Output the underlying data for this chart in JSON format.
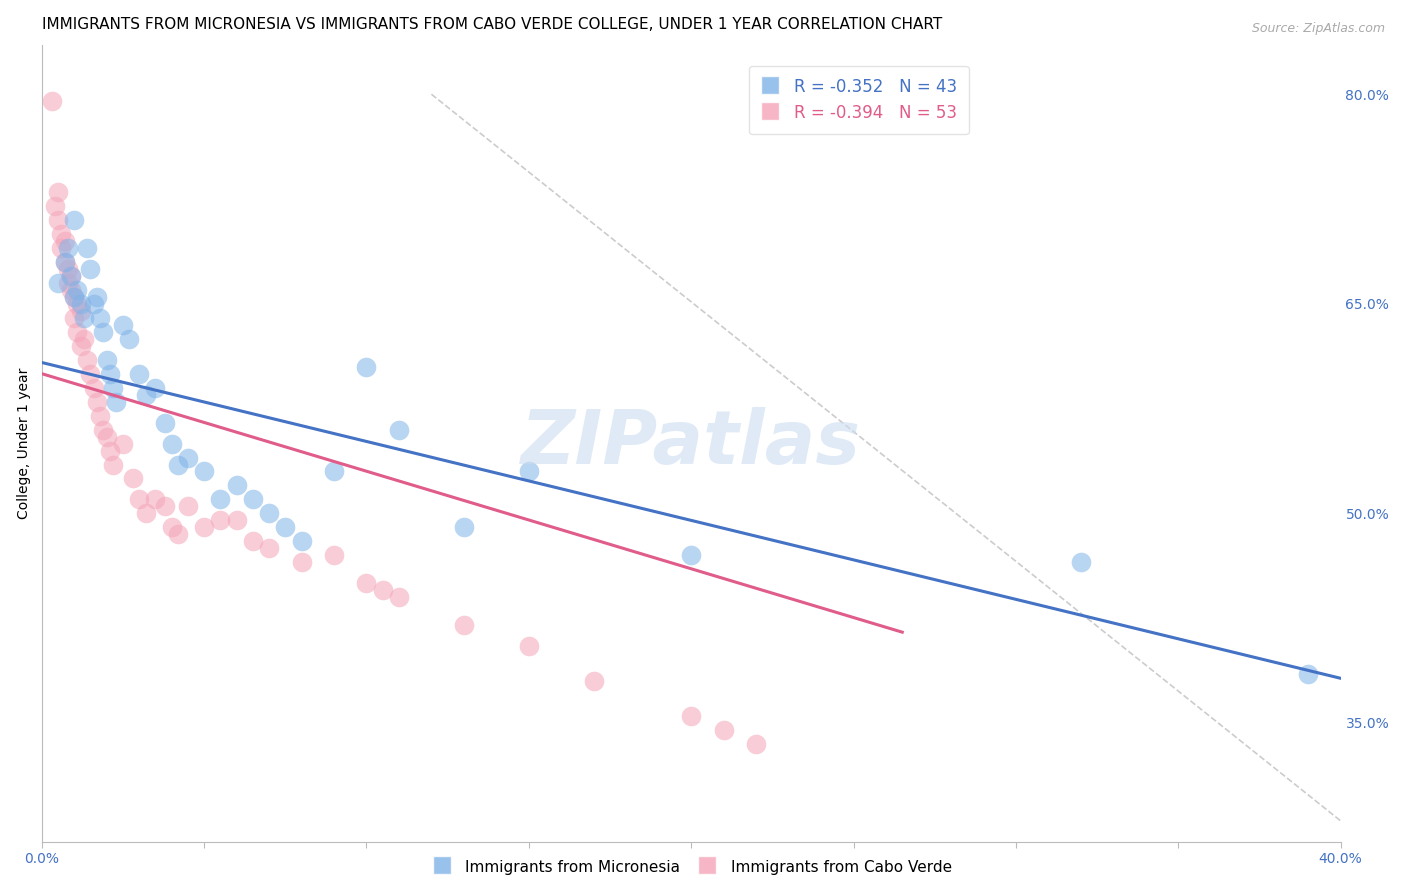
{
  "title": "IMMIGRANTS FROM MICRONESIA VS IMMIGRANTS FROM CABO VERDE COLLEGE, UNDER 1 YEAR CORRELATION CHART",
  "source": "Source: ZipAtlas.com",
  "ylabel": "College, Under 1 year",
  "xlim": [
    0.0,
    0.4
  ],
  "ylim": [
    0.265,
    0.835
  ],
  "right_yticks": [
    0.35,
    0.5,
    0.65,
    0.8
  ],
  "right_yticklabels": [
    "35.0%",
    "50.0%",
    "65.0%",
    "80.0%"
  ],
  "xticks": [
    0.0,
    0.05,
    0.1,
    0.15,
    0.2,
    0.25,
    0.3,
    0.35,
    0.4
  ],
  "xticklabels": [
    "0.0%",
    "",
    "",
    "",
    "",
    "",
    "",
    "",
    "40.0%"
  ],
  "grid_color": "#cccccc",
  "watermark": "ZIPatlas",
  "legend_label_blue": "Immigrants from Micronesia",
  "legend_label_pink": "Immigrants from Cabo Verde",
  "blue_color": "#7EB3E8",
  "pink_color": "#F4A4B8",
  "blue_line_color": "#4472C4",
  "pink_line_color": "#E05C8A",
  "title_fontsize": 11,
  "axis_label_fontsize": 10,
  "tick_fontsize": 10,
  "blue_scatter_x": [
    0.005,
    0.007,
    0.008,
    0.009,
    0.01,
    0.01,
    0.011,
    0.012,
    0.013,
    0.014,
    0.015,
    0.016,
    0.017,
    0.018,
    0.019,
    0.02,
    0.021,
    0.022,
    0.023,
    0.025,
    0.027,
    0.03,
    0.032,
    0.035,
    0.038,
    0.04,
    0.042,
    0.045,
    0.05,
    0.055,
    0.06,
    0.065,
    0.07,
    0.075,
    0.08,
    0.09,
    0.1,
    0.11,
    0.13,
    0.15,
    0.2,
    0.32,
    0.39
  ],
  "blue_scatter_y": [
    0.665,
    0.68,
    0.69,
    0.67,
    0.71,
    0.655,
    0.66,
    0.65,
    0.64,
    0.69,
    0.675,
    0.65,
    0.655,
    0.64,
    0.63,
    0.61,
    0.6,
    0.59,
    0.58,
    0.635,
    0.625,
    0.6,
    0.585,
    0.59,
    0.565,
    0.55,
    0.535,
    0.54,
    0.53,
    0.51,
    0.52,
    0.51,
    0.5,
    0.49,
    0.48,
    0.53,
    0.605,
    0.56,
    0.49,
    0.53,
    0.47,
    0.465,
    0.385
  ],
  "pink_scatter_x": [
    0.003,
    0.004,
    0.005,
    0.005,
    0.006,
    0.006,
    0.007,
    0.007,
    0.008,
    0.008,
    0.009,
    0.009,
    0.01,
    0.01,
    0.011,
    0.011,
    0.012,
    0.012,
    0.013,
    0.014,
    0.015,
    0.016,
    0.017,
    0.018,
    0.019,
    0.02,
    0.021,
    0.022,
    0.025,
    0.028,
    0.03,
    0.032,
    0.035,
    0.038,
    0.04,
    0.042,
    0.045,
    0.05,
    0.055,
    0.06,
    0.065,
    0.07,
    0.08,
    0.09,
    0.1,
    0.105,
    0.11,
    0.13,
    0.15,
    0.17,
    0.2,
    0.21,
    0.22
  ],
  "pink_scatter_y": [
    0.795,
    0.72,
    0.73,
    0.71,
    0.69,
    0.7,
    0.68,
    0.695,
    0.675,
    0.665,
    0.66,
    0.67,
    0.64,
    0.655,
    0.65,
    0.63,
    0.62,
    0.645,
    0.625,
    0.61,
    0.6,
    0.59,
    0.58,
    0.57,
    0.56,
    0.555,
    0.545,
    0.535,
    0.55,
    0.525,
    0.51,
    0.5,
    0.51,
    0.505,
    0.49,
    0.485,
    0.505,
    0.49,
    0.495,
    0.495,
    0.48,
    0.475,
    0.465,
    0.47,
    0.45,
    0.445,
    0.44,
    0.42,
    0.405,
    0.38,
    0.355,
    0.345,
    0.335
  ],
  "blue_line_x": [
    0.0,
    0.4
  ],
  "blue_line_y": [
    0.608,
    0.382
  ],
  "pink_line_x": [
    0.0,
    0.265
  ],
  "pink_line_y": [
    0.6,
    0.415
  ],
  "diag_line_x": [
    0.12,
    0.4
  ],
  "diag_line_y": [
    0.8,
    0.28
  ]
}
